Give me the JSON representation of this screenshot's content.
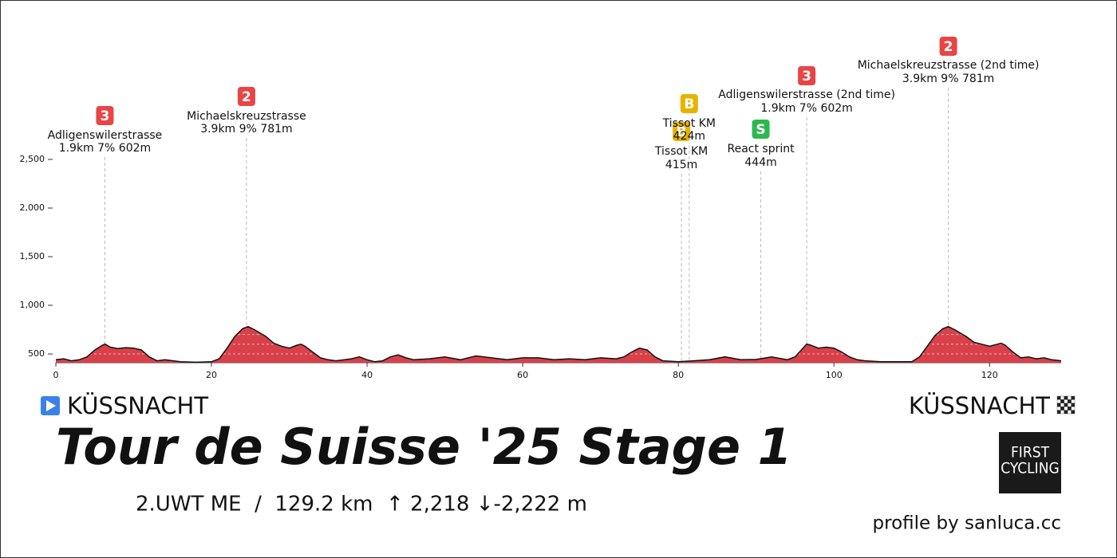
{
  "chart_data": {
    "type": "area",
    "title": "Tour de Suisse '25 Stage 1",
    "subtitle": "2.UWT ME  /  129.2 km  ↑ 2,218 ↓-2,222 m",
    "start": "KÜSSNACHT",
    "finish": "KÜSSNACHT",
    "credit": "profile by sanluca.cc",
    "logo": [
      "FIRST",
      "CYCLING"
    ],
    "color": "#d9414a",
    "xlim": [
      0,
      129.2
    ],
    "xticks": [
      0,
      20,
      40,
      60,
      80,
      100,
      120
    ],
    "ylim": [
      410,
      2500
    ],
    "yticks": [
      {
        "value": 500,
        "label": "500"
      },
      {
        "value": 1000,
        "label": "1,000"
      },
      {
        "value": 1500,
        "label": "1,500"
      },
      {
        "value": 2000,
        "label": "2,000"
      },
      {
        "value": 2500,
        "label": "2,500"
      }
    ],
    "x": [
      0,
      1,
      2,
      3,
      4,
      5,
      6,
      6.3,
      7,
      8,
      9,
      10,
      11,
      12,
      13,
      14,
      16,
      18,
      20,
      21,
      22,
      23,
      24,
      24.7,
      25.5,
      27,
      28,
      29,
      30,
      31,
      31.5,
      32,
      33,
      34,
      35,
      36,
      38,
      39,
      40,
      41,
      42,
      43,
      44,
      45,
      46,
      48,
      50,
      52,
      54,
      56,
      58,
      60,
      62,
      64,
      66,
      68,
      70,
      72,
      73,
      74,
      75,
      76,
      77,
      78,
      80,
      82,
      84,
      86,
      88,
      90,
      92,
      94,
      95,
      96.5,
      97,
      98,
      99,
      100,
      101,
      102,
      103,
      104,
      106,
      108,
      110,
      111,
      112,
      113,
      114,
      114.7,
      115.5,
      117,
      118,
      119,
      120,
      121,
      121.5,
      122,
      123,
      124,
      125,
      126,
      127,
      128,
      129.2
    ],
    "values": [
      440,
      450,
      430,
      440,
      470,
      540,
      590,
      602,
      570,
      555,
      565,
      560,
      540,
      470,
      430,
      440,
      420,
      415,
      420,
      450,
      560,
      680,
      760,
      781,
      750,
      680,
      610,
      580,
      560,
      590,
      600,
      580,
      520,
      460,
      440,
      430,
      450,
      470,
      440,
      420,
      430,
      470,
      490,
      460,
      440,
      450,
      470,
      440,
      480,
      460,
      440,
      460,
      460,
      440,
      450,
      440,
      460,
      450,
      470,
      520,
      560,
      540,
      470,
      430,
      420,
      430,
      440,
      470,
      440,
      444,
      470,
      440,
      470,
      602,
      590,
      560,
      570,
      560,
      520,
      470,
      440,
      430,
      420,
      420,
      420,
      470,
      580,
      690,
      760,
      781,
      750,
      680,
      620,
      600,
      580,
      600,
      610,
      590,
      520,
      460,
      470,
      450,
      460,
      440,
      430
    ],
    "climbs": [
      {
        "km": 6.3,
        "badge": "3",
        "name": "Adligenswilerstrasse",
        "details": "1.9km 7% 602m",
        "color": "#e84545"
      },
      {
        "km": 24.5,
        "badge": "2",
        "name": "Michaelskreuzstrasse",
        "details": "3.9km 9% 781m",
        "color": "#e84545"
      },
      {
        "km": 80.4,
        "badge": "B",
        "name": "Tissot KM",
        "details": "415m",
        "color": "#e8b300"
      },
      {
        "km": 81.4,
        "badge": "B",
        "name": "Tissot KM",
        "details": "424m",
        "color": "#e8b300"
      },
      {
        "km": 90.6,
        "badge": "S",
        "name": "React sprint",
        "details": "444m",
        "color": "#2db84d"
      },
      {
        "km": 96.5,
        "badge": "3",
        "name": "Adligenswilerstrasse (2nd time)",
        "details": "1.9km 7% 602m",
        "color": "#e84545"
      },
      {
        "km": 114.7,
        "badge": "2",
        "name": "Michaelskreuzstrasse (2nd time)",
        "details": "3.9km 9% 781m",
        "color": "#e84545"
      }
    ]
  }
}
